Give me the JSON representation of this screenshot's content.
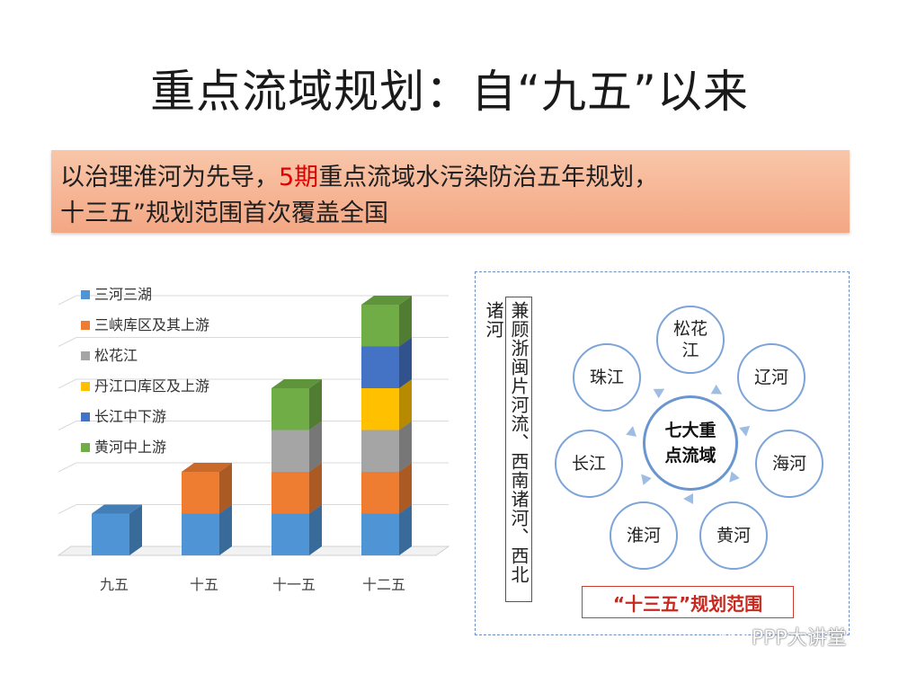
{
  "slide": {
    "title": "重点流域规划：自“九五”以来",
    "banner": {
      "line1_prefix": "以治理淮河为先导，",
      "line1_highlight": "5期",
      "line1_suffix": "重点流域水污染防治五年规划，",
      "line2": "十三五”规划范围首次覆盖全国"
    }
  },
  "chart_data": {
    "type": "bar",
    "stacked": true,
    "categories": [
      "九五",
      "十五",
      "十一五",
      "十二五"
    ],
    "series": [
      {
        "name": "三河三湖",
        "color": "#4f95d6",
        "values": [
          1,
          1,
          1,
          1
        ]
      },
      {
        "name": "三峡库区及其上游",
        "color": "#ee7d31",
        "values": [
          0,
          1,
          1,
          1
        ]
      },
      {
        "name": "松花江",
        "color": "#a5a5a5",
        "values": [
          0,
          0,
          1,
          1
        ]
      },
      {
        "name": "丹江口库区及上游",
        "color": "#ffc000",
        "values": [
          0,
          0,
          0,
          1
        ]
      },
      {
        "name": "长江中下游",
        "color": "#4472c4",
        "values": [
          0,
          0,
          0,
          1
        ]
      },
      {
        "name": "黄河中上游",
        "color": "#70ad47",
        "values": [
          0,
          0,
          1,
          1
        ]
      }
    ],
    "legend_position": "top-left",
    "grid": true
  },
  "diagram": {
    "vertical_text": "兼顾浙闽片河流、西南诸河、西北诸河",
    "center": {
      "line1": "七大重",
      "line2": "点流域"
    },
    "nodes": [
      {
        "id": "songhua",
        "line1": "松花",
        "line2": "江"
      },
      {
        "id": "liao",
        "line1": "辽河",
        "line2": ""
      },
      {
        "id": "hai",
        "line1": "海河",
        "line2": ""
      },
      {
        "id": "huang",
        "line1": "黄河",
        "line2": ""
      },
      {
        "id": "huai",
        "line1": "淮河",
        "line2": ""
      },
      {
        "id": "chang",
        "line1": "长江",
        "line2": ""
      },
      {
        "id": "zhu",
        "line1": "珠江",
        "line2": ""
      }
    ],
    "scope_label": "“十三五”规划范围",
    "arrow_color": "#9fbde3"
  },
  "watermark": "PPP大讲堂"
}
